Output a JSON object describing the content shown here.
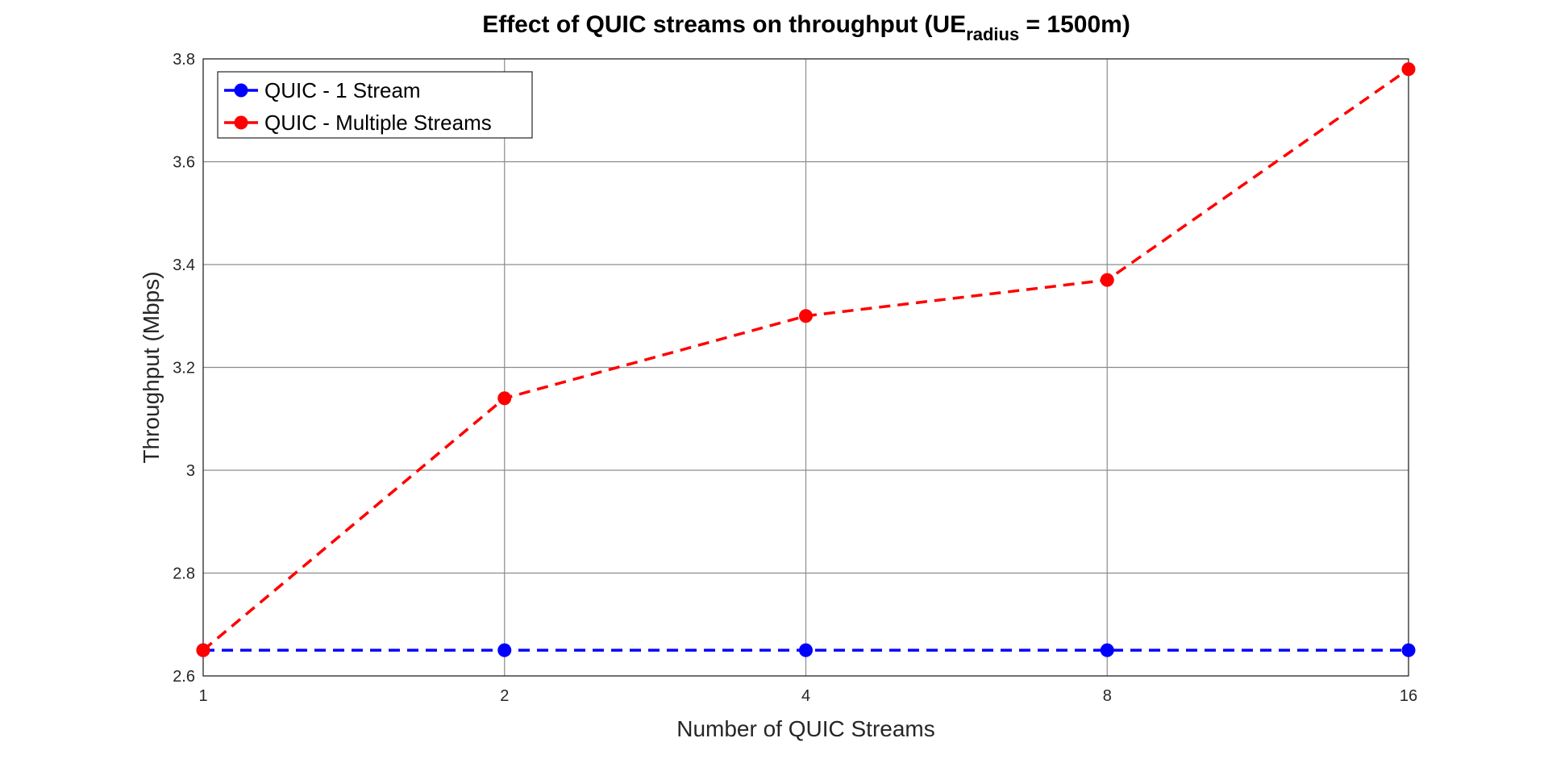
{
  "chart_data": {
    "type": "line",
    "title": {
      "main": "Effect of QUIC streams on throughput (UE",
      "subscript": "radius",
      "suffix": " = 1500m)"
    },
    "xlabel": "Number of QUIC Streams",
    "ylabel": "Throughput (Mbps)",
    "x": [
      1,
      2,
      4,
      8,
      16
    ],
    "x_scale": "log2",
    "x_tick_labels": [
      "1",
      "2",
      "4",
      "8",
      "16"
    ],
    "ylim": [
      2.6,
      3.8
    ],
    "y_ticks": [
      2.6,
      2.8,
      3.0,
      3.2,
      3.4,
      3.6,
      3.8
    ],
    "y_tick_labels": [
      "2.6",
      "2.8",
      "3",
      "3.2",
      "3.4",
      "3.6",
      "3.8"
    ],
    "grid": true,
    "legend_position": "top-left",
    "series": [
      {
        "name": "QUIC - 1 Stream",
        "color": "#0000ff",
        "line_style": "dashed",
        "marker": "circle",
        "values": [
          2.65,
          2.65,
          2.65,
          2.65,
          2.65
        ]
      },
      {
        "name": "QUIC - Multiple Streams",
        "color": "#ff0000",
        "line_style": "dashed",
        "marker": "circle",
        "values": [
          2.65,
          3.14,
          3.3,
          3.37,
          3.78
        ]
      }
    ]
  }
}
